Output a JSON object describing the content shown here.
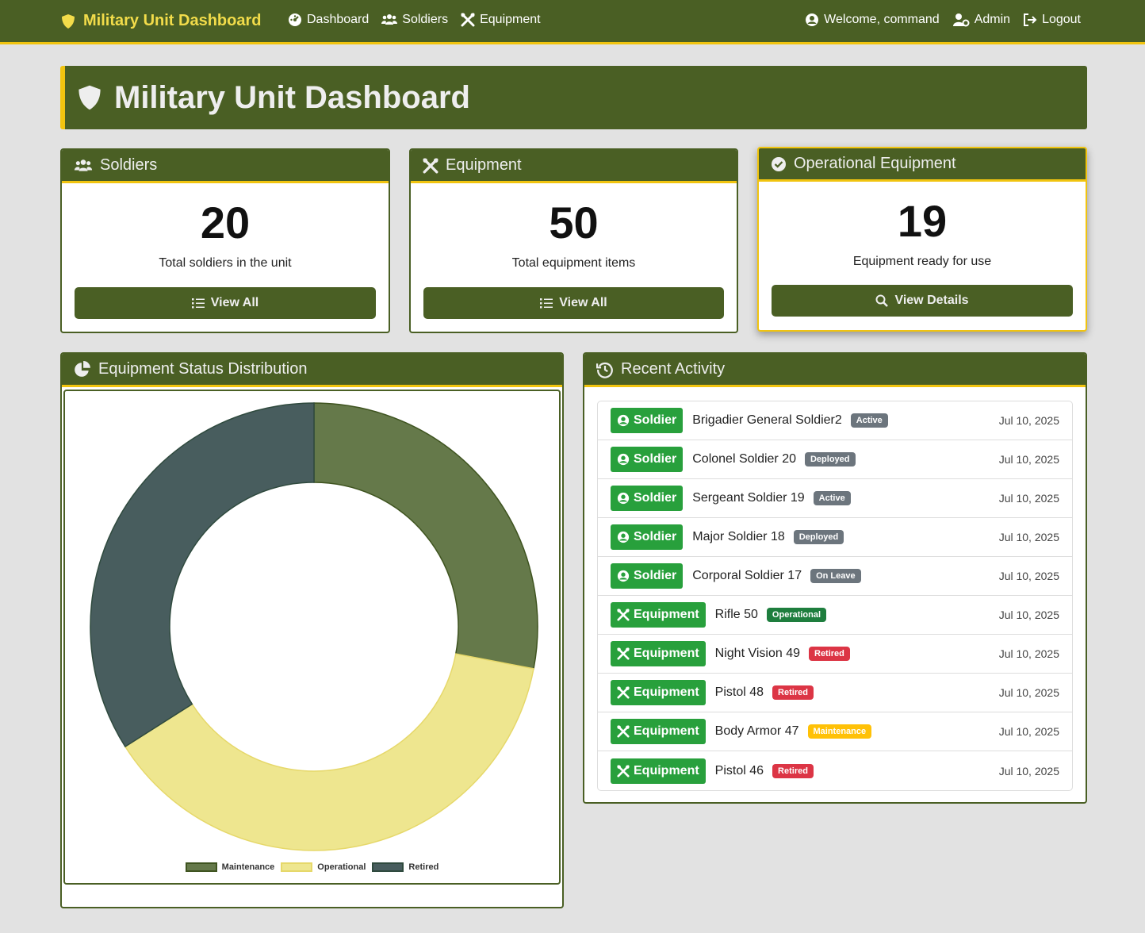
{
  "nav": {
    "brand": "Military Unit Dashboard",
    "links": [
      {
        "label": "Dashboard",
        "icon": "gauge-icon"
      },
      {
        "label": "Soldiers",
        "icon": "users-icon"
      },
      {
        "label": "Equipment",
        "icon": "tools-icon"
      }
    ],
    "welcome": "Welcome, command",
    "admin": "Admin",
    "logout": "Logout"
  },
  "banner": {
    "title": "Military Unit Dashboard"
  },
  "stats": {
    "soldiers": {
      "title": "Soldiers",
      "value": "20",
      "description": "Total soldiers in the unit",
      "button": "View All"
    },
    "equipment": {
      "title": "Equipment",
      "value": "50",
      "description": "Total equipment items",
      "button": "View All"
    },
    "operational": {
      "title": "Operational Equipment",
      "value": "19",
      "description": "Equipment ready for use",
      "button": "View Details"
    }
  },
  "chart_panel": {
    "title": "Equipment Status Distribution"
  },
  "chart_data": {
    "type": "pie",
    "categories": [
      "Maintenance",
      "Operational",
      "Retired"
    ],
    "values": [
      14,
      19,
      17
    ],
    "colors": [
      "#65794a",
      "#eee68f",
      "#485d5e"
    ],
    "borders": [
      "#3f5420",
      "#e6d86a",
      "#2f4a3e"
    ],
    "legend": "bottom",
    "donut": true
  },
  "activity": {
    "title": "Recent Activity",
    "items": [
      {
        "type": "Soldier",
        "name": "Brigadier General Soldier2",
        "status": "Active",
        "date": "Jul 10, 2025"
      },
      {
        "type": "Soldier",
        "name": "Colonel Soldier 20",
        "status": "Deployed",
        "date": "Jul 10, 2025"
      },
      {
        "type": "Soldier",
        "name": "Sergeant Soldier 19",
        "status": "Active",
        "date": "Jul 10, 2025"
      },
      {
        "type": "Soldier",
        "name": "Major Soldier 18",
        "status": "Deployed",
        "date": "Jul 10, 2025"
      },
      {
        "type": "Soldier",
        "name": "Corporal Soldier 17",
        "status": "On Leave",
        "date": "Jul 10, 2025"
      },
      {
        "type": "Equipment",
        "name": "Rifle 50",
        "status": "Operational",
        "date": "Jul 10, 2025"
      },
      {
        "type": "Equipment",
        "name": "Night Vision 49",
        "status": "Retired",
        "date": "Jul 10, 2025"
      },
      {
        "type": "Equipment",
        "name": "Pistol 48",
        "status": "Retired",
        "date": "Jul 10, 2025"
      },
      {
        "type": "Equipment",
        "name": "Body Armor 47",
        "status": "Maintenance",
        "date": "Jul 10, 2025"
      },
      {
        "type": "Equipment",
        "name": "Pistol 46",
        "status": "Retired",
        "date": "Jul 10, 2025"
      }
    ]
  },
  "colors": {
    "primary": "#4a5f24",
    "accent": "#f1c40f",
    "badge_green": "#28a03c",
    "status_active": "#6c757d",
    "status_operational": "#1e7e3e",
    "status_retired": "#dc3545",
    "status_maintenance": "#ffc107"
  }
}
